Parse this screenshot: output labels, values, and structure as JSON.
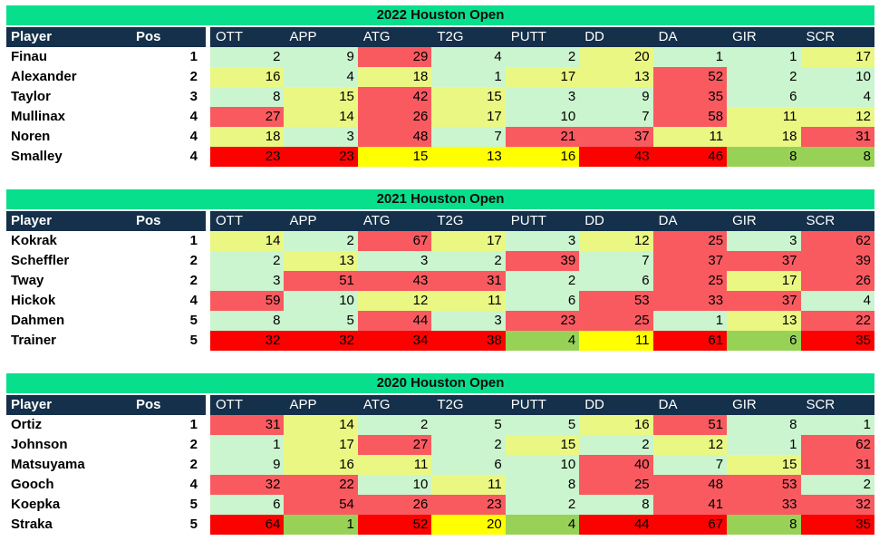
{
  "colors": {
    "title_bg": "#07DF8C",
    "header_bg": "#14304A",
    "header_text": "#FFFFFF",
    "cell_map": {
      "g": "#CBF5CE",
      "y": "#EAF883",
      "r": "#F95A60",
      "R": "#FB0200",
      "Y": "#FFFF00",
      "G": "#97D257"
    },
    "cell_legend": {
      "g": "light-green-good-rank",
      "y": "yellow-green-mid-rank",
      "r": "salmon-red-poor-rank",
      "R": "bright-red-worst-row",
      "Y": "bright-yellow-worst-row",
      "G": "medium-green-worst-row"
    }
  },
  "columns": {
    "player": "Player",
    "pos": "Pos",
    "stats": [
      "OTT",
      "APP",
      "ATG",
      "T2G",
      "PUTT",
      "DD",
      "DA",
      "GIR",
      "SCR"
    ]
  },
  "tables": [
    {
      "title": "2022 Houston Open",
      "rows": [
        {
          "player": "Finau",
          "pos": "1",
          "values": [
            2,
            9,
            29,
            4,
            2,
            20,
            1,
            1,
            17
          ],
          "cellColors": [
            "g",
            "g",
            "r",
            "g",
            "g",
            "y",
            "g",
            "g",
            "y"
          ]
        },
        {
          "player": "Alexander",
          "pos": "2",
          "values": [
            16,
            4,
            18,
            1,
            17,
            13,
            52,
            2,
            10
          ],
          "cellColors": [
            "y",
            "g",
            "y",
            "g",
            "y",
            "y",
            "r",
            "g",
            "g"
          ]
        },
        {
          "player": "Taylor",
          "pos": "3",
          "values": [
            8,
            15,
            42,
            15,
            3,
            9,
            35,
            6,
            4
          ],
          "cellColors": [
            "g",
            "y",
            "r",
            "y",
            "g",
            "g",
            "r",
            "g",
            "g"
          ]
        },
        {
          "player": "Mullinax",
          "pos": "4",
          "values": [
            27,
            14,
            26,
            17,
            10,
            7,
            58,
            11,
            12
          ],
          "cellColors": [
            "r",
            "y",
            "r",
            "y",
            "g",
            "g",
            "r",
            "y",
            "y"
          ]
        },
        {
          "player": "Noren",
          "pos": "4",
          "values": [
            18,
            3,
            48,
            7,
            21,
            37,
            11,
            18,
            31
          ],
          "cellColors": [
            "y",
            "g",
            "r",
            "g",
            "r",
            "r",
            "y",
            "y",
            "r"
          ]
        },
        {
          "player": "Smalley",
          "pos": "4",
          "values": [
            23,
            23,
            15,
            13,
            16,
            43,
            46,
            8,
            8
          ],
          "cellColors": [
            "R",
            "R",
            "Y",
            "Y",
            "Y",
            "R",
            "R",
            "G",
            "G"
          ]
        }
      ]
    },
    {
      "title": "2021 Houston Open",
      "rows": [
        {
          "player": "Kokrak",
          "pos": "1",
          "values": [
            14,
            2,
            67,
            17,
            3,
            12,
            25,
            3,
            62
          ],
          "cellColors": [
            "y",
            "g",
            "r",
            "y",
            "g",
            "y",
            "r",
            "g",
            "r"
          ]
        },
        {
          "player": "Scheffler",
          "pos": "2",
          "values": [
            2,
            13,
            3,
            2,
            39,
            7,
            37,
            37,
            39
          ],
          "cellColors": [
            "g",
            "y",
            "g",
            "g",
            "r",
            "g",
            "r",
            "r",
            "r"
          ]
        },
        {
          "player": "Tway",
          "pos": "2",
          "values": [
            3,
            51,
            43,
            31,
            2,
            6,
            25,
            17,
            26
          ],
          "cellColors": [
            "g",
            "r",
            "r",
            "r",
            "g",
            "g",
            "r",
            "y",
            "r"
          ]
        },
        {
          "player": "Hickok",
          "pos": "4",
          "values": [
            59,
            10,
            12,
            11,
            6,
            53,
            33,
            37,
            4
          ],
          "cellColors": [
            "r",
            "g",
            "y",
            "y",
            "g",
            "r",
            "r",
            "r",
            "g"
          ]
        },
        {
          "player": "Dahmen",
          "pos": "5",
          "values": [
            8,
            5,
            44,
            3,
            23,
            25,
            1,
            13,
            22
          ],
          "cellColors": [
            "g",
            "g",
            "r",
            "g",
            "r",
            "r",
            "g",
            "y",
            "r"
          ]
        },
        {
          "player": "Trainer",
          "pos": "5",
          "values": [
            32,
            32,
            34,
            38,
            4,
            11,
            61,
            6,
            35
          ],
          "cellColors": [
            "R",
            "R",
            "R",
            "R",
            "G",
            "Y",
            "R",
            "G",
            "R"
          ]
        }
      ]
    },
    {
      "title": "2020 Houston Open",
      "rows": [
        {
          "player": "Ortiz",
          "pos": "1",
          "values": [
            31,
            14,
            2,
            5,
            5,
            16,
            51,
            8,
            1
          ],
          "cellColors": [
            "r",
            "y",
            "g",
            "g",
            "g",
            "y",
            "r",
            "g",
            "g"
          ]
        },
        {
          "player": "Johnson",
          "pos": "2",
          "values": [
            1,
            17,
            27,
            2,
            15,
            2,
            12,
            1,
            62
          ],
          "cellColors": [
            "g",
            "y",
            "r",
            "g",
            "y",
            "g",
            "y",
            "g",
            "r"
          ]
        },
        {
          "player": "Matsuyama",
          "pos": "2",
          "values": [
            9,
            16,
            11,
            6,
            10,
            40,
            7,
            15,
            31
          ],
          "cellColors": [
            "g",
            "y",
            "y",
            "g",
            "g",
            "r",
            "g",
            "y",
            "r"
          ]
        },
        {
          "player": "Gooch",
          "pos": "4",
          "values": [
            32,
            22,
            10,
            11,
            8,
            25,
            48,
            53,
            2
          ],
          "cellColors": [
            "r",
            "r",
            "g",
            "y",
            "g",
            "r",
            "r",
            "r",
            "g"
          ]
        },
        {
          "player": "Koepka",
          "pos": "5",
          "values": [
            6,
            54,
            26,
            23,
            2,
            8,
            41,
            33,
            32
          ],
          "cellColors": [
            "g",
            "r",
            "r",
            "r",
            "g",
            "g",
            "r",
            "r",
            "r"
          ]
        },
        {
          "player": "Straka",
          "pos": "5",
          "values": [
            64,
            1,
            52,
            20,
            4,
            44,
            67,
            8,
            35
          ],
          "cellColors": [
            "R",
            "G",
            "R",
            "Y",
            "G",
            "R",
            "R",
            "G",
            "R"
          ]
        }
      ]
    }
  ]
}
